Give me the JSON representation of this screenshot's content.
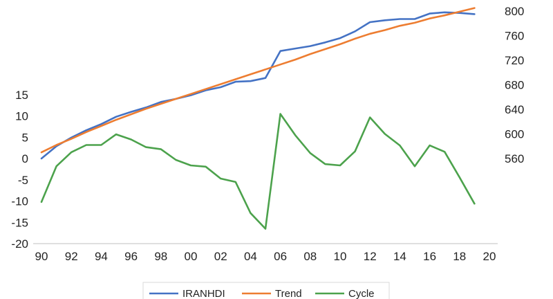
{
  "chart_data": {
    "type": "line",
    "x_tick_labels": [
      "90",
      "92",
      "94",
      "96",
      "98",
      "00",
      "02",
      "04",
      "06",
      "08",
      "10",
      "12",
      "14",
      "16",
      "18",
      "20"
    ],
    "x": [
      1990,
      1991,
      1992,
      1993,
      1994,
      1995,
      1996,
      1997,
      1998,
      1999,
      2000,
      2001,
      2002,
      2003,
      2004,
      2005,
      2006,
      2007,
      2008,
      2009,
      2010,
      2011,
      2012,
      2013,
      2014,
      2015,
      2016,
      2017,
      2018,
      2019
    ],
    "left_axis": {
      "ylim": [
        -20,
        15
      ],
      "ticks": [
        15,
        10,
        5,
        0,
        -5,
        -10,
        -15,
        -20
      ]
    },
    "right_axis": {
      "ylim": [
        560,
        800
      ],
      "ticks": [
        800,
        760,
        720,
        680,
        640,
        600,
        560
      ]
    },
    "series": [
      {
        "name": "IRANHDI",
        "axis": "right",
        "color": "#4472C4",
        "values": [
          560,
          580,
          594,
          606,
          616,
          628,
          636,
          643,
          652,
          657,
          663,
          671,
          676,
          685,
          686,
          691,
          735,
          739,
          743,
          749,
          756,
          767,
          782,
          785,
          787,
          787,
          796,
          798,
          797,
          795
        ]
      },
      {
        "name": "Trend",
        "axis": "right",
        "color": "#ED7D31",
        "values": [
          570,
          582,
          592,
          603,
          613,
          623,
          632,
          641,
          649,
          657,
          665,
          673,
          681,
          689,
          697,
          705,
          713,
          721,
          730,
          738,
          746,
          755,
          763,
          769,
          776,
          781,
          788,
          793,
          799,
          805
        ]
      },
      {
        "name": "Cycle",
        "axis": "left",
        "color": "#4CA24C",
        "values": [
          -10.2,
          -1.8,
          1.5,
          3.2,
          3.2,
          5.7,
          4.5,
          2.7,
          2.2,
          -0.3,
          -1.6,
          -1.9,
          -4.7,
          -5.5,
          -12.8,
          -16.5,
          10.5,
          5.5,
          1.3,
          -1.3,
          -1.6,
          1.7,
          9.7,
          5.8,
          3.1,
          -1.8,
          3.1,
          1.6,
          -4.4,
          -10.6
        ]
      }
    ],
    "legend_position": "bottom",
    "grid": false
  }
}
